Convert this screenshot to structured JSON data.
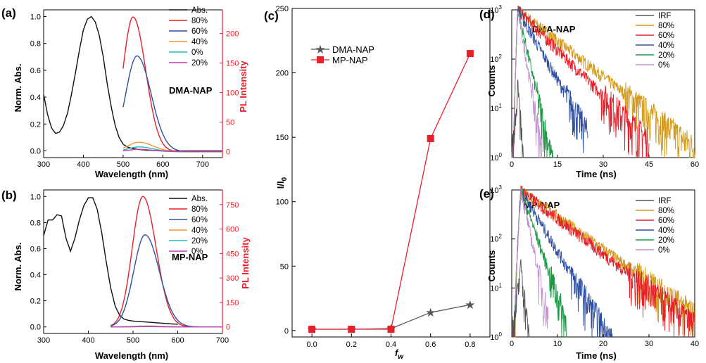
{
  "colors": {
    "black": "#111111",
    "red": "#e8202a",
    "blue": "#2f4fa3",
    "orange": "#f29a38",
    "teal": "#25b7c0",
    "magenta": "#c23ea8",
    "gold": "#d39a1e",
    "green": "#1b9a45",
    "violet": "#c58fd8",
    "gray": "#555555"
  },
  "chart_data": [
    {
      "panel": "(a)",
      "type": "line",
      "inset_label": "DMA-NAP",
      "xlabel": "Wavelength (nm)",
      "ylabel_left": "Norm. Abs.",
      "ylabel_right": "PL Intensity",
      "xlim": [
        300,
        750
      ],
      "ylim_left": [
        -0.05,
        1.05
      ],
      "ylim_right": [
        -10,
        240
      ],
      "x_ticks": [
        "300",
        "400",
        "500",
        "600",
        "700"
      ],
      "y_left_ticks": [
        "0.0",
        "0.2",
        "0.4",
        "0.6",
        "0.8",
        "1.0"
      ],
      "y_right_ticks": [
        "0",
        "50",
        "100",
        "150",
        "200"
      ],
      "legend": [
        "Abs.",
        "80%",
        "60%",
        "40%",
        "0%",
        "20%"
      ],
      "series": [
        {
          "name": "Abs.",
          "axis": "left",
          "x": [
            300,
            310,
            320,
            330,
            340,
            350,
            360,
            370,
            380,
            390,
            400,
            410,
            420,
            430,
            440,
            450,
            460,
            470,
            480,
            490,
            500,
            510,
            520,
            540,
            560,
            600,
            650,
            700,
            750
          ],
          "values": [
            0.42,
            0.27,
            0.17,
            0.13,
            0.14,
            0.19,
            0.28,
            0.42,
            0.58,
            0.75,
            0.9,
            0.98,
            1.0,
            0.96,
            0.86,
            0.7,
            0.5,
            0.33,
            0.19,
            0.1,
            0.05,
            0.03,
            0.02,
            0.01,
            0.005,
            0.0,
            0.0,
            0.0,
            0.0
          ]
        },
        {
          "name": "80%",
          "axis": "right",
          "peak": 228,
          "center": 525,
          "width": 45
        },
        {
          "name": "60%",
          "axis": "right",
          "peak": 162,
          "center": 535,
          "width": 50
        },
        {
          "name": "40%",
          "axis": "right",
          "peak": 16,
          "center": 540,
          "width": 50
        },
        {
          "name": "0%",
          "axis": "right",
          "peak": 8,
          "center": 540,
          "width": 50
        },
        {
          "name": "20%",
          "axis": "right",
          "peak": 4,
          "center": 540,
          "width": 50
        }
      ]
    },
    {
      "panel": "(b)",
      "type": "line",
      "inset_label": "MP-NAP",
      "xlabel": "Wavelength (nm)",
      "ylabel_left": "Norm. Abs.",
      "ylabel_right": "PL Intensity",
      "xlim": [
        300,
        700
      ],
      "ylim_left": [
        -0.05,
        1.05
      ],
      "ylim_right": [
        -40,
        840
      ],
      "x_ticks": [
        "300",
        "400",
        "500",
        "600",
        "700"
      ],
      "y_left_ticks": [
        "0.0",
        "0.2",
        "0.4",
        "0.6",
        "0.8",
        "1.0"
      ],
      "y_right_ticks": [
        "0",
        "150",
        "300",
        "450",
        "600",
        "750"
      ],
      "legend": [
        "Abs.",
        "80%",
        "60%",
        "40%",
        "20%",
        "0%"
      ],
      "series": [
        {
          "name": "Abs.",
          "axis": "left",
          "x": [
            300,
            310,
            320,
            330,
            340,
            350,
            360,
            370,
            380,
            390,
            400,
            410,
            420,
            430,
            440,
            450,
            460,
            470,
            480,
            490,
            500,
            520,
            560,
            600
          ],
          "values": [
            0.7,
            0.82,
            0.82,
            0.86,
            0.85,
            0.68,
            0.58,
            0.68,
            0.82,
            0.93,
            0.99,
            0.99,
            0.9,
            0.72,
            0.5,
            0.3,
            0.16,
            0.09,
            0.06,
            0.05,
            0.045,
            0.04,
            0.03,
            0.02
          ]
        },
        {
          "name": "80%",
          "axis": "right",
          "peak": 800,
          "center": 522,
          "width": 42
        },
        {
          "name": "60%",
          "axis": "right",
          "peak": 565,
          "center": 527,
          "width": 45
        },
        {
          "name": "40%",
          "axis": "right",
          "peak": 6,
          "center": 530,
          "width": 45
        },
        {
          "name": "20%",
          "axis": "right",
          "peak": 4,
          "center": 530,
          "width": 45
        },
        {
          "name": "0%",
          "axis": "right",
          "peak": 2,
          "center": 530,
          "width": 45
        }
      ]
    },
    {
      "panel": "(c)",
      "type": "line",
      "xlabel": "f_w",
      "ylabel": "I/I0",
      "xlim": [
        -0.1,
        0.9
      ],
      "ylim": [
        -5,
        250
      ],
      "x_ticks": [
        "0.0",
        "0.2",
        "0.4",
        "0.6",
        "0.8"
      ],
      "y_ticks": [
        "0",
        "50",
        "100",
        "150",
        "200",
        "250"
      ],
      "categories": [
        0.0,
        0.2,
        0.4,
        0.6,
        0.8
      ],
      "series": [
        {
          "name": "DMA-NAP",
          "marker": "star",
          "values": [
            1.0,
            1.0,
            1.5,
            14,
            20
          ]
        },
        {
          "name": "MP-NAP",
          "marker": "square",
          "values": [
            1.0,
            1.0,
            1.0,
            149,
            215
          ]
        }
      ]
    },
    {
      "panel": "(d)",
      "type": "line",
      "yscale": "log",
      "inset_label": "DMA-NAP",
      "xlabel": "Time (ns)",
      "ylabel": "Counts",
      "xlim": [
        0,
        60
      ],
      "ylim": [
        1,
        1000
      ],
      "x_ticks": [
        "0",
        "15",
        "30",
        "45",
        "60"
      ],
      "y_ticks": [
        "10^0",
        "10^1",
        "10^2",
        "10^3"
      ],
      "legend": [
        "IRF",
        "80%",
        "60%",
        "40%",
        "20%",
        "0%"
      ],
      "series": [
        {
          "name": "IRF",
          "peak_ns": 2,
          "tau_ns": 0.5,
          "end_ns": 4
        },
        {
          "name": "80%",
          "peak_ns": 2,
          "tau_ns": 9,
          "end_ns": 60
        },
        {
          "name": "60%",
          "peak_ns": 2,
          "tau_ns": 7,
          "end_ns": 45
        },
        {
          "name": "40%",
          "peak_ns": 2,
          "tau_ns": 4,
          "end_ns": 25
        },
        {
          "name": "20%",
          "peak_ns": 2,
          "tau_ns": 1.6,
          "end_ns": 14
        },
        {
          "name": "0%",
          "peak_ns": 2,
          "tau_ns": 1.2,
          "end_ns": 10
        }
      ]
    },
    {
      "panel": "(e)",
      "type": "line",
      "yscale": "log",
      "inset_label": "MP-NAP",
      "xlabel": "Time (ns)",
      "ylabel": "Counts",
      "xlim": [
        0,
        40
      ],
      "ylim": [
        1,
        1000
      ],
      "x_ticks": [
        "0",
        "10",
        "20",
        "30",
        "40"
      ],
      "y_ticks": [
        "10^0",
        "10^1",
        "10^2",
        "10^3"
      ],
      "legend": [
        "IRF",
        "80%",
        "60%",
        "40%",
        "20%",
        "0%"
      ],
      "series": [
        {
          "name": "IRF",
          "peak_ns": 2,
          "tau_ns": 0.5,
          "end_ns": 4
        },
        {
          "name": "80%",
          "peak_ns": 2,
          "tau_ns": 6.5,
          "end_ns": 40
        },
        {
          "name": "60%",
          "peak_ns": 2,
          "tau_ns": 6,
          "end_ns": 40
        },
        {
          "name": "40%",
          "peak_ns": 2,
          "tau_ns": 2.8,
          "end_ns": 22
        },
        {
          "name": "20%",
          "peak_ns": 2,
          "tau_ns": 1.6,
          "end_ns": 12
        },
        {
          "name": "0%",
          "peak_ns": 2,
          "tau_ns": 1.0,
          "end_ns": 8
        }
      ]
    }
  ]
}
